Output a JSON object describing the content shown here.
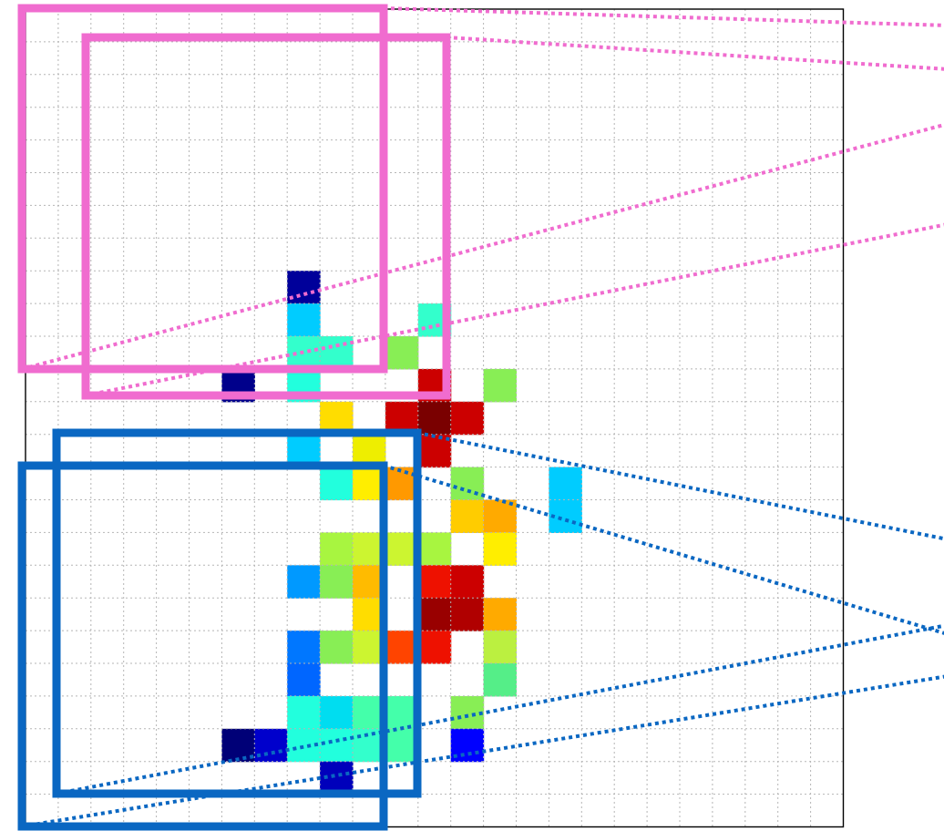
{
  "grid": {
    "rows": 25,
    "cols": 25
  },
  "colors": {
    "grid_line": "#b5b5b5",
    "frame": "#000000",
    "pink": "#f06ccf",
    "blue": "#0a67c2"
  },
  "cells": [
    {
      "r": 8,
      "c": 8,
      "color": "#00009a"
    },
    {
      "r": 9,
      "c": 8,
      "color": "#00ccff"
    },
    {
      "r": 9,
      "c": 12,
      "color": "#33ffcc"
    },
    {
      "r": 10,
      "c": 8,
      "color": "#33ffcc"
    },
    {
      "r": 10,
      "c": 9,
      "color": "#33ffcc"
    },
    {
      "r": 10,
      "c": 11,
      "color": "#88ee55"
    },
    {
      "r": 11,
      "c": 6,
      "color": "#00008b"
    },
    {
      "r": 11,
      "c": 8,
      "color": "#22ffdd"
    },
    {
      "r": 11,
      "c": 12,
      "color": "#cc0000"
    },
    {
      "r": 11,
      "c": 14,
      "color": "#88ee55"
    },
    {
      "r": 12,
      "c": 9,
      "color": "#ffdd00"
    },
    {
      "r": 12,
      "c": 11,
      "color": "#cc0000"
    },
    {
      "r": 12,
      "c": 12,
      "color": "#7a0000"
    },
    {
      "r": 12,
      "c": 13,
      "color": "#cc0000"
    },
    {
      "r": 13,
      "c": 8,
      "color": "#00ccff"
    },
    {
      "r": 13,
      "c": 10,
      "color": "#eeee00"
    },
    {
      "r": 13,
      "c": 12,
      "color": "#cc0000"
    },
    {
      "r": 14,
      "c": 9,
      "color": "#22ffdd"
    },
    {
      "r": 14,
      "c": 10,
      "color": "#ffee00"
    },
    {
      "r": 14,
      "c": 11,
      "color": "#ff9900"
    },
    {
      "r": 14,
      "c": 13,
      "color": "#88ee55"
    },
    {
      "r": 14,
      "c": 16,
      "color": "#00ccff"
    },
    {
      "r": 15,
      "c": 13,
      "color": "#ffcc00"
    },
    {
      "r": 15,
      "c": 14,
      "color": "#ffaa00"
    },
    {
      "r": 15,
      "c": 16,
      "color": "#00ccff"
    },
    {
      "r": 16,
      "c": 9,
      "color": "#a8f540"
    },
    {
      "r": 16,
      "c": 10,
      "color": "#ccf530"
    },
    {
      "r": 16,
      "c": 11,
      "color": "#ccf530"
    },
    {
      "r": 16,
      "c": 12,
      "color": "#a8f540"
    },
    {
      "r": 16,
      "c": 14,
      "color": "#ffee00"
    },
    {
      "r": 17,
      "c": 8,
      "color": "#0099ff"
    },
    {
      "r": 17,
      "c": 9,
      "color": "#88ee55"
    },
    {
      "r": 17,
      "c": 10,
      "color": "#ffbb00"
    },
    {
      "r": 17,
      "c": 12,
      "color": "#ee1100"
    },
    {
      "r": 17,
      "c": 13,
      "color": "#cc0000"
    },
    {
      "r": 18,
      "c": 10,
      "color": "#ffdd00"
    },
    {
      "r": 18,
      "c": 12,
      "color": "#990000"
    },
    {
      "r": 18,
      "c": 13,
      "color": "#b00000"
    },
    {
      "r": 18,
      "c": 14,
      "color": "#ffaa00"
    },
    {
      "r": 19,
      "c": 8,
      "color": "#0077ff"
    },
    {
      "r": 19,
      "c": 9,
      "color": "#88ee55"
    },
    {
      "r": 19,
      "c": 10,
      "color": "#ccf530"
    },
    {
      "r": 19,
      "c": 11,
      "color": "#ff4400"
    },
    {
      "r": 19,
      "c": 12,
      "color": "#ee1100"
    },
    {
      "r": 19,
      "c": 14,
      "color": "#bbf040"
    },
    {
      "r": 20,
      "c": 8,
      "color": "#0066ff"
    },
    {
      "r": 20,
      "c": 14,
      "color": "#55ee88"
    },
    {
      "r": 21,
      "c": 8,
      "color": "#22ffdd"
    },
    {
      "r": 21,
      "c": 9,
      "color": "#00ddf0"
    },
    {
      "r": 21,
      "c": 10,
      "color": "#44ffaa"
    },
    {
      "r": 21,
      "c": 11,
      "color": "#44ffaa"
    },
    {
      "r": 21,
      "c": 13,
      "color": "#88ee55"
    },
    {
      "r": 22,
      "c": 6,
      "color": "#000077"
    },
    {
      "r": 22,
      "c": 7,
      "color": "#0000cc"
    },
    {
      "r": 22,
      "c": 8,
      "color": "#22ffdd"
    },
    {
      "r": 22,
      "c": 9,
      "color": "#22ffdd"
    },
    {
      "r": 22,
      "c": 10,
      "color": "#33ffcc"
    },
    {
      "r": 22,
      "c": 11,
      "color": "#44ffaa"
    },
    {
      "r": 22,
      "c": 13,
      "color": "#0000ff"
    },
    {
      "r": 23,
      "c": 9,
      "color": "#0000bb"
    }
  ],
  "boxes": [
    {
      "id": "pink-box-1",
      "color": "pink",
      "rect": [
        0,
        0,
        11,
        11
      ]
    },
    {
      "id": "pink-box-2",
      "color": "pink",
      "rect": [
        2,
        1,
        13,
        12
      ]
    },
    {
      "id": "blue-box-1",
      "color": "blue",
      "rect": [
        1,
        13,
        12,
        24
      ]
    },
    {
      "id": "blue-box-2",
      "color": "blue",
      "rect": [
        0,
        14,
        11,
        25
      ]
    }
  ]
}
